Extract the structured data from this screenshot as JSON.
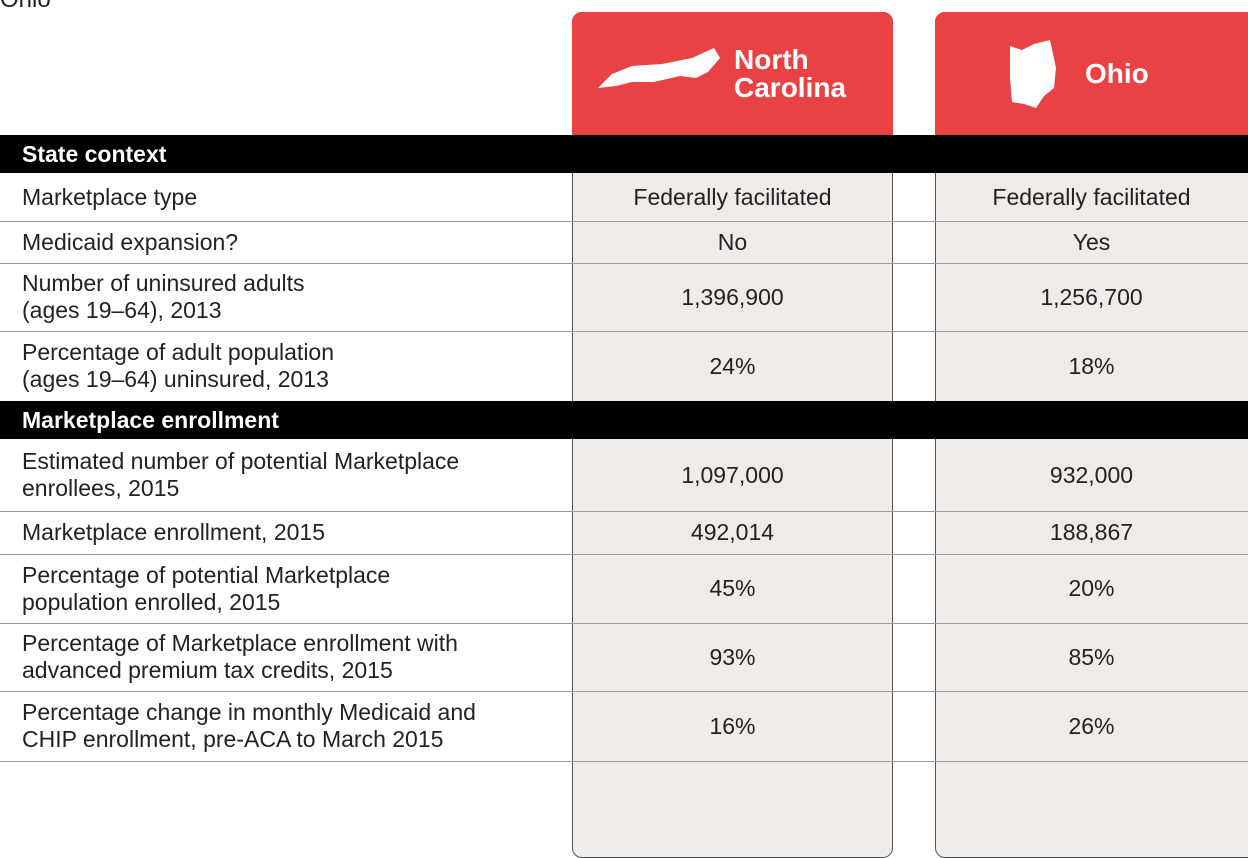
{
  "caption": "Ohio",
  "columns": [
    "North Carolina",
    "Ohio"
  ],
  "sections": [
    {
      "title": "State context",
      "rows": [
        {
          "label": [
            "Marketplace type"
          ],
          "values": [
            "Federally facilitated",
            "Federally facilitated"
          ]
        },
        {
          "label": [
            "Medicaid expansion?"
          ],
          "values": [
            "No",
            "Yes"
          ]
        },
        {
          "label": [
            "Number of uninsured adults",
            "(ages 19–64), 2013"
          ],
          "values": [
            "1,396,900",
            "1,256,700"
          ]
        },
        {
          "label": [
            "Percentage of adult population",
            "(ages 19–64) uninsured, 2013"
          ],
          "values": [
            "24%",
            "18%"
          ]
        }
      ]
    },
    {
      "title": "Marketplace enrollment",
      "rows": [
        {
          "label": [
            "Estimated number of potential Marketplace",
            "enrollees, 2015"
          ],
          "values": [
            "1,097,000",
            "932,000"
          ]
        },
        {
          "label": [
            "Marketplace enrollment, 2015"
          ],
          "values": [
            "492,014",
            "188,867"
          ]
        },
        {
          "label": [
            "Percentage of potential Marketplace",
            "population enrolled, 2015"
          ],
          "values": [
            "45%",
            "20%"
          ]
        },
        {
          "label": [
            "Percentage of Marketplace enrollment with",
            "advanced premium tax credits, 2015"
          ],
          "values": [
            "93%",
            "85%"
          ]
        },
        {
          "label": [
            "Percentage change in monthly Medicaid and",
            "CHIP enrollment, pre-ACA to March 2015"
          ],
          "values": [
            "16%",
            "26%"
          ]
        }
      ]
    }
  ]
}
